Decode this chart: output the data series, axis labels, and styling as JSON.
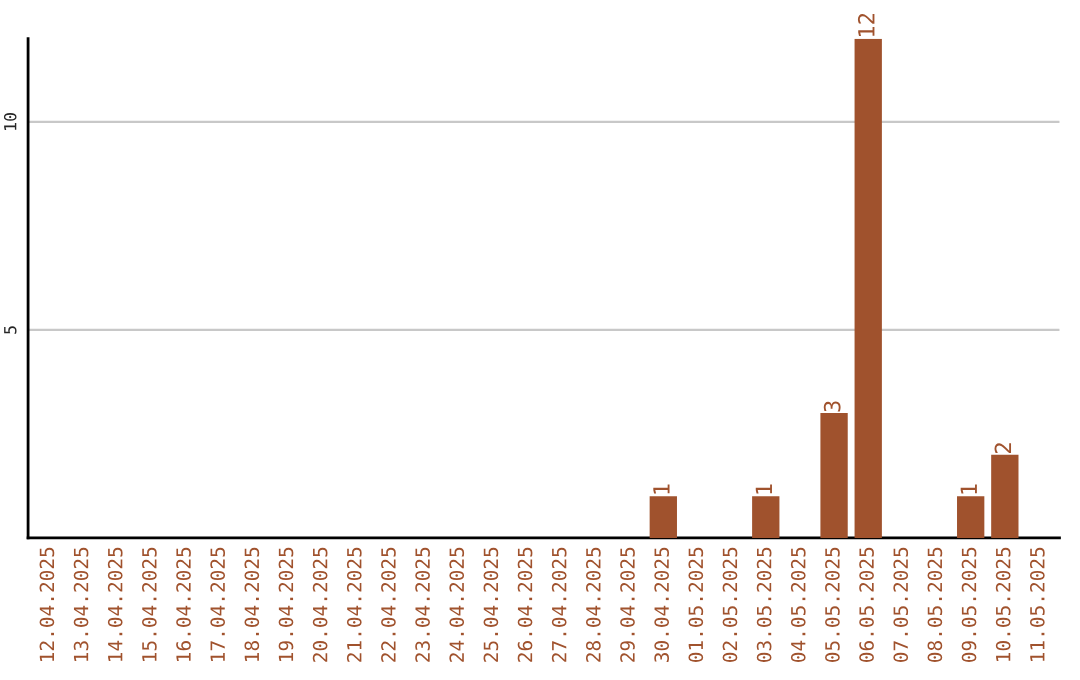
{
  "chart_data": {
    "type": "bar",
    "categories": [
      "12.04.2025",
      "13.04.2025",
      "14.04.2025",
      "15.04.2025",
      "16.04.2025",
      "17.04.2025",
      "18.04.2025",
      "19.04.2025",
      "20.04.2025",
      "21.04.2025",
      "22.04.2025",
      "23.04.2025",
      "24.04.2025",
      "25.04.2025",
      "26.04.2025",
      "27.04.2025",
      "28.04.2025",
      "29.04.2025",
      "30.04.2025",
      "01.05.2025",
      "02.05.2025",
      "03.05.2025",
      "04.05.2025",
      "05.05.2025",
      "06.05.2025",
      "07.05.2025",
      "08.05.2025",
      "09.05.2025",
      "10.05.2025",
      "11.05.2025"
    ],
    "values": [
      0,
      0,
      0,
      0,
      0,
      0,
      0,
      0,
      0,
      0,
      0,
      0,
      0,
      0,
      0,
      0,
      0,
      0,
      1,
      0,
      0,
      1,
      0,
      3,
      12,
      0,
      0,
      1,
      2,
      0
    ],
    "value_labels": [
      null,
      null,
      null,
      null,
      null,
      null,
      null,
      null,
      null,
      null,
      null,
      null,
      null,
      null,
      null,
      null,
      null,
      null,
      "1",
      null,
      null,
      "1",
      null,
      "3",
      "12",
      null,
      null,
      "1",
      "2",
      null
    ],
    "color": "#a0522d",
    "ylim": [
      0,
      12
    ],
    "yticks": [
      5,
      10
    ],
    "grid": "y"
  }
}
